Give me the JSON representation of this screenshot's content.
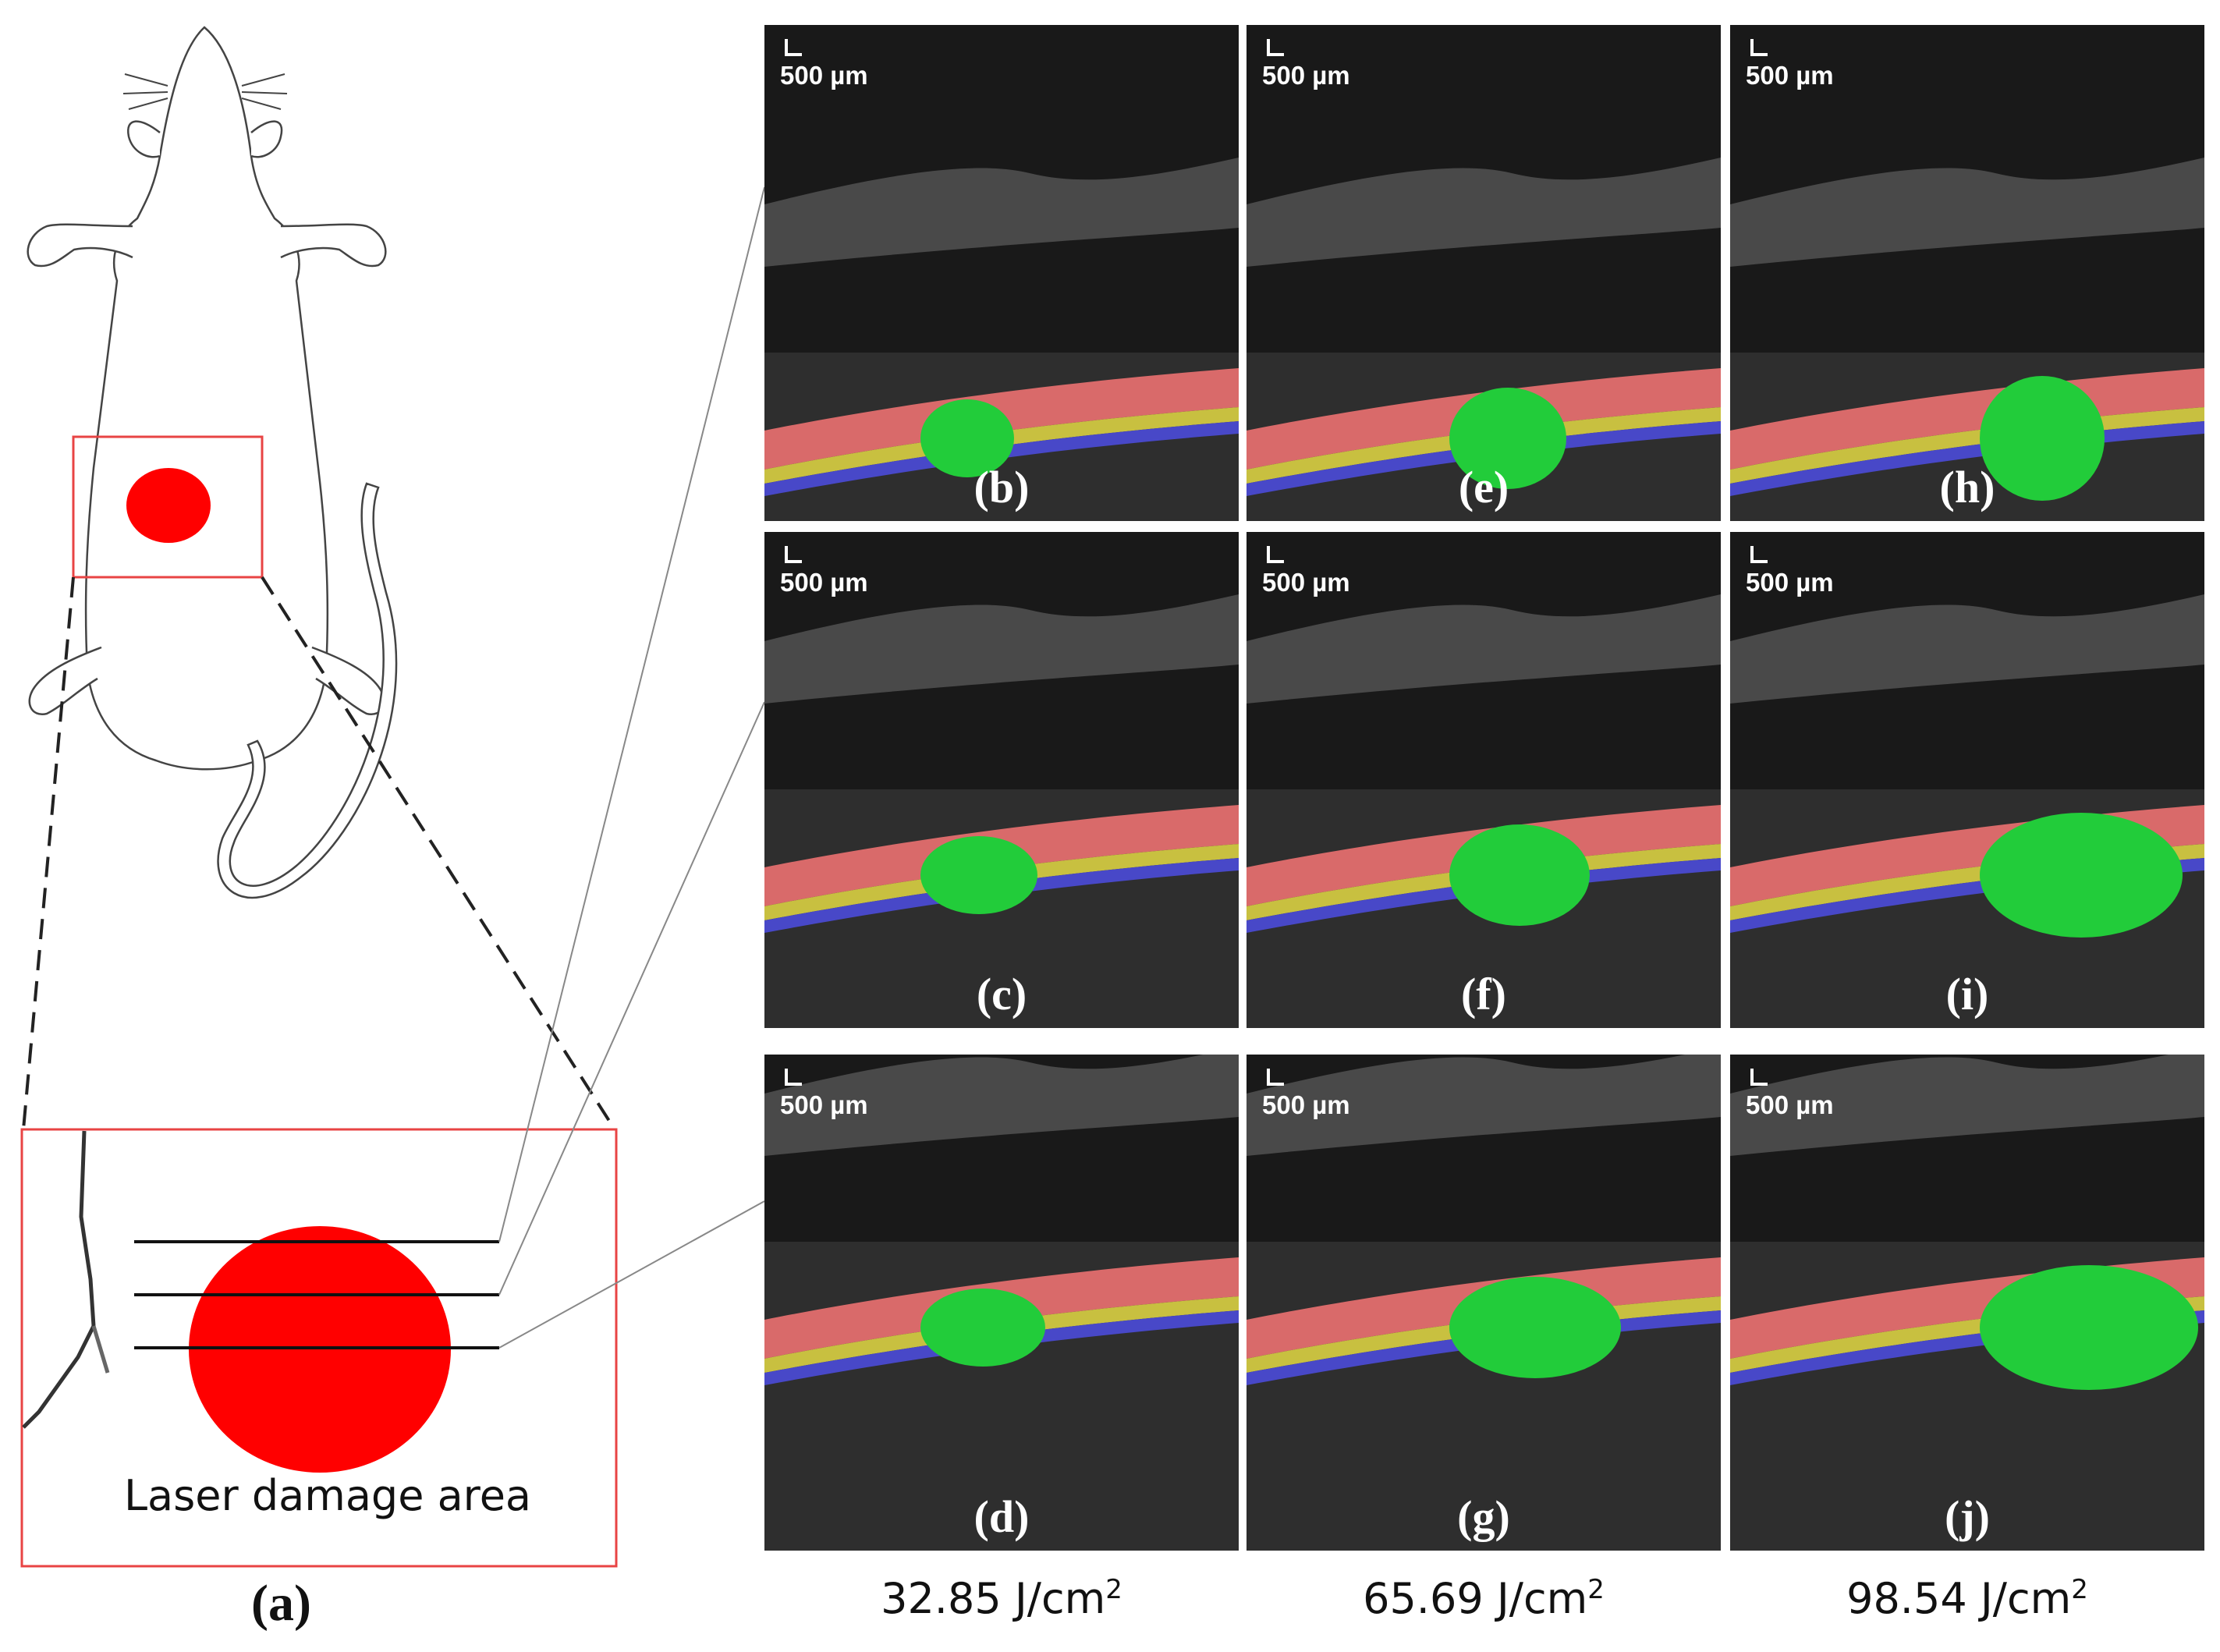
{
  "figure_label": "(a)",
  "zoom_box_caption": "Laser damage area",
  "scale_label": "500 µm",
  "columns": [
    {
      "fluence_value": "32.85 J/cm",
      "fluence_exp": "2"
    },
    {
      "fluence_value": "65.69 J/cm",
      "fluence_exp": "2"
    },
    {
      "fluence_value": "98.54 J/cm",
      "fluence_exp": "2"
    }
  ],
  "panels": [
    {
      "label": "(b)"
    },
    {
      "label": "(c)"
    },
    {
      "label": "(d)"
    },
    {
      "label": "(e)"
    },
    {
      "label": "(f)"
    },
    {
      "label": "(g)"
    },
    {
      "label": "(h)"
    },
    {
      "label": "(i)"
    },
    {
      "label": "(j)"
    }
  ],
  "colors": {
    "laser_spot": "#ff0000",
    "box_outline": "#e84444",
    "layer_red": "#d96a6a",
    "layer_yellow": "#c8c040",
    "layer_blue": "#4848c8",
    "lesion_green": "#22cc3a"
  }
}
